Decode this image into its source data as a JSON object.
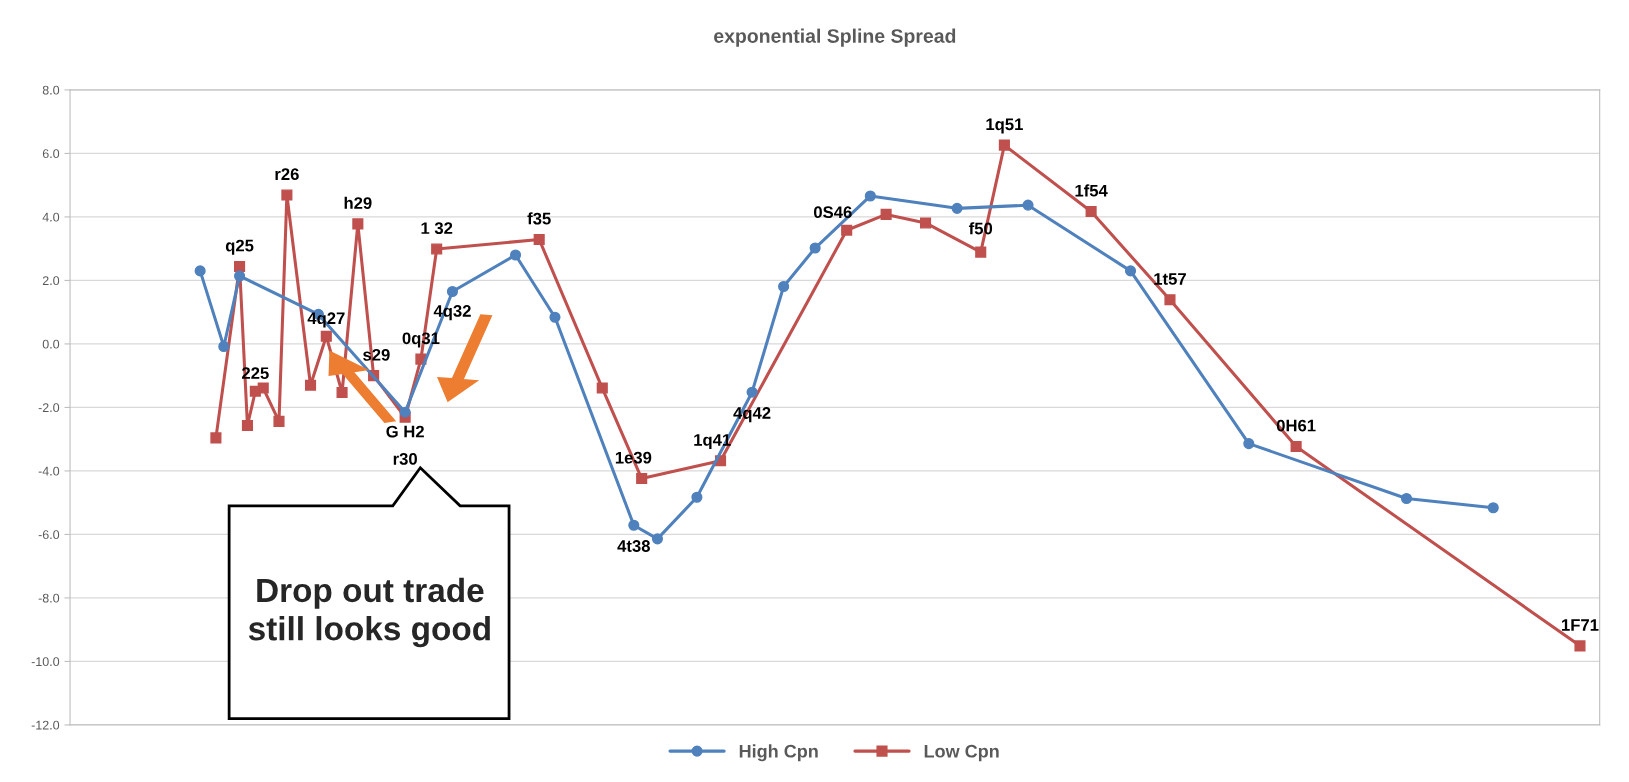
{
  "chart_data": {
    "type": "line",
    "title": "exponential Spline Spread",
    "categories": [
      null,
      null,
      null,
      null,
      null,
      null,
      null,
      null,
      null,
      null,
      null,
      null,
      null,
      null,
      null,
      null,
      null,
      null,
      null,
      null,
      null,
      null,
      null,
      null,
      null,
      null,
      null,
      null,
      null,
      null,
      null,
      null,
      null,
      null,
      null,
      null,
      null,
      null,
      null,
      null,
      null,
      null,
      null,
      null,
      null,
      null,
      null,
      null,
      null,
      null,
      null,
      null,
      null,
      null,
      null,
      null,
      null,
      null,
      null,
      null,
      null,
      null,
      null,
      null,
      null,
      null,
      null,
      null,
      null,
      null,
      null,
      null,
      null,
      null,
      null,
      null,
      null,
      null,
      null,
      null,
      null,
      null,
      null,
      null,
      null,
      null,
      null,
      null,
      null,
      null,
      null,
      null,
      null,
      null,
      null,
      null,
      null,
      null,
      null,
      null,
      null,
      null,
      null,
      null,
      null,
      null,
      null,
      null,
      null,
      null,
      null,
      null,
      null,
      null,
      null,
      null,
      null,
      null,
      null,
      null,
      null,
      null,
      null,
      null,
      null,
      null,
      null,
      null,
      null,
      null,
      null,
      null,
      null,
      null,
      null,
      null,
      null,
      null,
      null,
      null,
      null,
      null,
      null,
      null,
      null,
      null,
      null,
      null,
      null,
      null,
      null,
      null,
      null,
      null,
      null,
      null,
      null,
      null,
      null,
      null,
      null,
      null,
      null,
      null,
      null,
      null,
      null,
      null,
      null,
      null,
      null,
      null,
      null,
      null,
      null,
      null,
      null,
      null,
      null,
      null,
      null,
      null,
      null,
      null,
      null,
      null,
      null,
      null,
      null,
      null,
      null,
      null,
      null,
      null
    ],
    "ylim": [
      -12,
      8
    ],
    "yticks": [
      {
        "value": -12,
        "label": "-12.0"
      },
      {
        "value": -10,
        "label": "-10.0"
      },
      {
        "value": -8,
        "label": "-8.0"
      },
      {
        "value": -6,
        "label": "-6.0"
      },
      {
        "value": -4,
        "label": "-4.0"
      },
      {
        "value": -2,
        "label": "-2.0"
      },
      {
        "value": 0,
        "label": "0.0"
      },
      {
        "value": 2,
        "label": "2.0"
      },
      {
        "value": 4,
        "label": "4.0"
      },
      {
        "value": 6,
        "label": "6.0"
      },
      {
        "value": 8,
        "label": "8.0"
      }
    ],
    "tick_labels": "y",
    "grid": "y",
    "legend": "bottom",
    "series": [
      {
        "name": "High Cpn",
        "color": "#4f81bd",
        "marker": "circle",
        "values": [
          null,
          null,
          null,
          null,
          null,
          null,
          null,
          null,
          null,
          null,
          null,
          null,
          null,
          null,
          null,
          null,
          2.3,
          null,
          null,
          -0.08,
          null,
          2.14,
          null,
          null,
          null,
          null,
          null,
          null,
          null,
          null,
          null,
          0.93,
          null,
          null,
          null,
          null,
          null,
          null,
          null,
          null,
          null,
          null,
          -2.15,
          null,
          null,
          null,
          null,
          null,
          1.65,
          null,
          null,
          null,
          null,
          null,
          null,
          null,
          2.8,
          null,
          null,
          null,
          null,
          0.84,
          null,
          null,
          null,
          null,
          null,
          null,
          null,
          null,
          null,
          -5.71,
          null,
          null,
          -6.14,
          null,
          null,
          null,
          null,
          -4.83,
          null,
          null,
          null,
          null,
          null,
          null,
          -1.52,
          null,
          null,
          null,
          1.81,
          null,
          null,
          null,
          3.02,
          null,
          null,
          null,
          null,
          null,
          null,
          4.66,
          null,
          null,
          null,
          null,
          null,
          null,
          null,
          null,
          null,
          null,
          4.27,
          null,
          null,
          null,
          null,
          null,
          null,
          null,
          null,
          4.37,
          null,
          null,
          null,
          null,
          null,
          null,
          null,
          null,
          null,
          null,
          null,
          null,
          2.3,
          null,
          null,
          null,
          null,
          null,
          null,
          null,
          null,
          null,
          null,
          null,
          null,
          null,
          null,
          -3.14,
          null,
          null,
          null,
          null,
          null,
          null,
          null,
          null,
          null,
          null,
          null,
          null,
          null,
          null,
          null,
          null,
          null,
          null,
          null,
          -4.87,
          null,
          null,
          null,
          null,
          null,
          null,
          null,
          null,
          null,
          null,
          -5.16,
          null,
          null,
          null,
          null,
          null,
          null,
          null,
          null,
          null,
          null,
          null,
          null,
          null
        ]
      },
      {
        "name": "Low Cpn",
        "color": "#c0504d",
        "marker": "square",
        "values": [
          null,
          null,
          null,
          null,
          null,
          null,
          null,
          null,
          null,
          null,
          null,
          null,
          null,
          null,
          null,
          null,
          null,
          null,
          -2.96,
          null,
          null,
          2.44,
          -2.57,
          -1.49,
          -1.39,
          null,
          -2.44,
          4.69,
          null,
          null,
          -1.3,
          null,
          0.24,
          null,
          -1.53,
          null,
          3.78,
          null,
          -1.0,
          null,
          null,
          null,
          -2.31,
          null,
          -0.48,
          null,
          2.99,
          null,
          null,
          null,
          null,
          null,
          null,
          null,
          null,
          null,
          null,
          null,
          null,
          3.29,
          null,
          null,
          null,
          null,
          null,
          null,
          null,
          -1.39,
          null,
          null,
          null,
          null,
          -4.24,
          null,
          null,
          null,
          null,
          null,
          null,
          null,
          null,
          null,
          -3.68,
          null,
          null,
          null,
          null,
          null,
          null,
          null,
          null,
          null,
          null,
          null,
          null,
          null,
          null,
          null,
          3.58,
          null,
          null,
          null,
          null,
          4.08,
          null,
          null,
          null,
          null,
          3.81,
          null,
          null,
          null,
          null,
          null,
          null,
          2.89,
          null,
          null,
          6.26,
          null,
          null,
          null,
          null,
          null,
          null,
          null,
          null,
          null,
          null,
          4.17,
          null,
          null,
          null,
          null,
          null,
          null,
          null,
          null,
          null,
          1.39,
          null,
          null,
          null,
          null,
          null,
          null,
          null,
          null,
          null,
          null,
          null,
          null,
          null,
          null,
          null,
          -3.23,
          null,
          null,
          null,
          null,
          null,
          null,
          null,
          null,
          null,
          null,
          null,
          null,
          null,
          null,
          null,
          null,
          null,
          null,
          null,
          null,
          null,
          null,
          null,
          null,
          null,
          null,
          null,
          null,
          null,
          null,
          null,
          null,
          null,
          null,
          null,
          -9.51,
          null,
          null
        ]
      }
    ],
    "annotations": [
      {
        "text": "q25",
        "y": 2.44
      },
      {
        "text": "225",
        "y": -1.49
      },
      {
        "text": "r26",
        "y": 4.69
      },
      {
        "text": "4q27",
        "y": 0.24
      },
      {
        "text": "h29",
        "y": 3.78
      },
      {
        "text": "s29",
        "y": -1.0
      },
      {
        "text": "r30",
        "y": -2.31
      },
      {
        "text": "G H2",
        "y": -2.15
      },
      {
        "text": "0q31",
        "y": -0.48
      },
      {
        "text": "4q32",
        "y": 1.65
      },
      {
        "text": "1 32",
        "y": 2.99
      },
      {
        "text": "f35",
        "y": 3.29
      },
      {
        "text": "1e39",
        "y": -4.24
      },
      {
        "text": "4t38",
        "y": -5.71
      },
      {
        "text": "1q41",
        "y": -3.68
      },
      {
        "text": "4q42",
        "y": -1.52
      },
      {
        "text": "0S46",
        "y": 3.58
      },
      {
        "text": "f50",
        "y": 2.89
      },
      {
        "text": "1q51",
        "y": 6.26
      },
      {
        "text": "1f54",
        "y": 4.17
      },
      {
        "text": "1t57",
        "y": 1.39
      },
      {
        "text": "0H61",
        "y": -3.23
      },
      {
        "text": "1F71",
        "y": -9.51
      },
      "Drop out trade still looks good"
    ]
  }
}
